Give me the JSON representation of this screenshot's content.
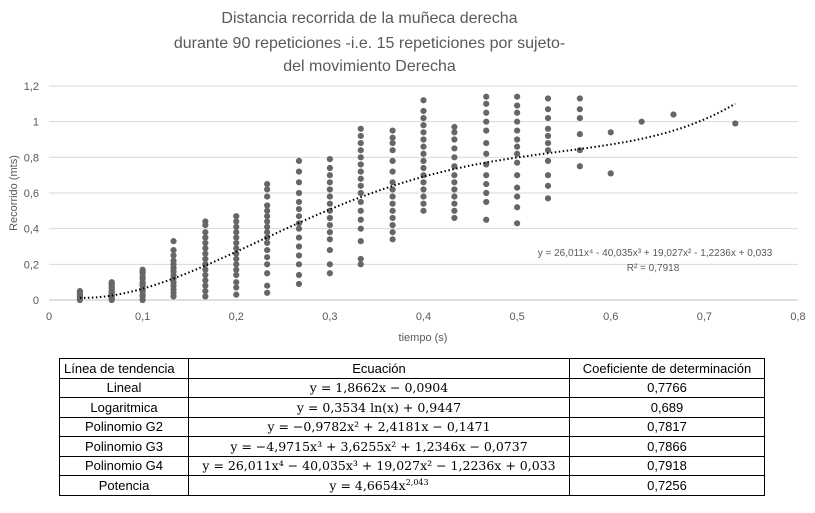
{
  "chart_data": {
    "type": "scatter",
    "title_lines": [
      "Distancia recorrida de la muñeca derecha",
      "durante  90 repeticiones -i.e. 15 repeticiones por sujeto-",
      "del movimiento Derecha"
    ],
    "xlabel": "tiempo (s)",
    "ylabel": "Recorrido (mts)",
    "xlim": [
      0,
      0.8
    ],
    "ylim": [
      0,
      1.2
    ],
    "xticks": [
      0,
      0.1,
      0.2,
      0.3,
      0.4,
      0.5,
      0.6,
      0.7,
      0.8
    ],
    "xtick_labels": [
      "0",
      "0,1",
      "0,2",
      "0,3",
      "0,4",
      "0,5",
      "0,6",
      "0,7",
      "0,8"
    ],
    "yticks": [
      0,
      0.2,
      0.4,
      0.6,
      0.8,
      1.0,
      1.2
    ],
    "ytick_labels": [
      "0",
      "0,2",
      "0,4",
      "0,6",
      "0,8",
      "1",
      "1,2"
    ],
    "grid": "horizontal",
    "point_color": "#666666",
    "trend_color": "#000000",
    "trendline": {
      "type": "polynomial",
      "coefficients": [
        0.033,
        -1.2236,
        19.027,
        -40.035,
        26.011
      ],
      "x_range": [
        0.033,
        0.733
      ],
      "equation_label": "y = 26,011x⁴ - 40,035x³ + 19,027x² - 1,2236x + 0,033",
      "r2_label": "R² = 0,7918"
    },
    "clusters": [
      {
        "x": 0.033,
        "y": [
          0.0,
          0.01,
          0.02,
          0.03,
          0.04,
          0.05
        ]
      },
      {
        "x": 0.067,
        "y": [
          0.0,
          0.01,
          0.02,
          0.03,
          0.04,
          0.05,
          0.06,
          0.07,
          0.08,
          0.09,
          0.1
        ]
      },
      {
        "x": 0.1,
        "y": [
          0.0,
          0.02,
          0.03,
          0.05,
          0.06,
          0.08,
          0.09,
          0.1,
          0.12,
          0.13,
          0.15,
          0.16,
          0.17
        ]
      },
      {
        "x": 0.133,
        "y": [
          0.02,
          0.04,
          0.06,
          0.08,
          0.1,
          0.12,
          0.14,
          0.16,
          0.18,
          0.2,
          0.22,
          0.25,
          0.28,
          0.33
        ]
      },
      {
        "x": 0.167,
        "y": [
          0.02,
          0.05,
          0.08,
          0.11,
          0.14,
          0.17,
          0.2,
          0.23,
          0.26,
          0.29,
          0.32,
          0.35,
          0.38,
          0.42,
          0.44
        ]
      },
      {
        "x": 0.2,
        "y": [
          0.03,
          0.07,
          0.1,
          0.14,
          0.17,
          0.2,
          0.23,
          0.26,
          0.29,
          0.32,
          0.35,
          0.38,
          0.41,
          0.44,
          0.47
        ]
      },
      {
        "x": 0.233,
        "y": [
          0.04,
          0.08,
          0.15,
          0.2,
          0.24,
          0.28,
          0.32,
          0.35,
          0.38,
          0.41,
          0.44,
          0.47,
          0.5,
          0.53,
          0.58,
          0.62,
          0.65
        ]
      },
      {
        "x": 0.267,
        "y": [
          0.09,
          0.14,
          0.2,
          0.25,
          0.3,
          0.35,
          0.4,
          0.43,
          0.47,
          0.51,
          0.55,
          0.6,
          0.66,
          0.72,
          0.78
        ]
      },
      {
        "x": 0.3,
        "y": [
          0.15,
          0.2,
          0.28,
          0.34,
          0.38,
          0.42,
          0.46,
          0.5,
          0.54,
          0.58,
          0.62,
          0.66,
          0.7,
          0.74,
          0.79
        ]
      },
      {
        "x": 0.333,
        "y": [
          0.2,
          0.23,
          0.33,
          0.4,
          0.45,
          0.5,
          0.55,
          0.6,
          0.64,
          0.68,
          0.72,
          0.76,
          0.8,
          0.84,
          0.88,
          0.92,
          0.96
        ]
      },
      {
        "x": 0.367,
        "y": [
          0.34,
          0.38,
          0.42,
          0.46,
          0.5,
          0.54,
          0.58,
          0.62,
          0.66,
          0.72,
          0.78,
          0.84,
          0.88,
          0.91,
          0.95
        ]
      },
      {
        "x": 0.4,
        "y": [
          0.5,
          0.54,
          0.58,
          0.62,
          0.66,
          0.7,
          0.74,
          0.78,
          0.82,
          0.86,
          0.9,
          0.94,
          0.98,
          1.02,
          1.06,
          1.12
        ]
      },
      {
        "x": 0.433,
        "y": [
          0.46,
          0.5,
          0.54,
          0.58,
          0.62,
          0.66,
          0.7,
          0.75,
          0.8,
          0.85,
          0.9,
          0.94,
          0.97
        ]
      },
      {
        "x": 0.467,
        "y": [
          0.45,
          0.55,
          0.6,
          0.65,
          0.7,
          0.76,
          0.82,
          0.88,
          0.95,
          1.0,
          1.05,
          1.1,
          1.14
        ]
      },
      {
        "x": 0.5,
        "y": [
          0.43,
          0.52,
          0.58,
          0.63,
          0.7,
          0.77,
          0.82,
          0.86,
          0.9,
          0.95,
          1.0,
          1.05,
          1.09,
          1.14
        ]
      },
      {
        "x": 0.533,
        "y": [
          0.57,
          0.64,
          0.7,
          0.78,
          0.84,
          0.88,
          0.92,
          0.96,
          1.02,
          1.07,
          1.13
        ]
      },
      {
        "x": 0.567,
        "y": [
          0.75,
          0.84,
          0.93,
          1.02,
          1.07,
          1.13
        ]
      },
      {
        "x": 0.6,
        "y": [
          0.71,
          0.94
        ]
      },
      {
        "x": 0.633,
        "y": [
          1.0
        ]
      },
      {
        "x": 0.667,
        "y": [
          1.04
        ]
      },
      {
        "x": 0.733,
        "y": [
          0.99
        ]
      }
    ]
  },
  "table": {
    "headers": [
      "Línea de tendencia",
      "Ecuación",
      "Coeficiente de determinación"
    ],
    "rows": [
      {
        "name": "Lineal",
        "equation": "y = 1,8662x − 0,0904",
        "r2": "0,7766"
      },
      {
        "name": "Logaritmica",
        "equation": "y = 0,3534 ln(x) + 0,9447",
        "r2": "0,689"
      },
      {
        "name": "Polinomio G2",
        "equation": "y = −0,9782x² + 2,4181x − 0,1471",
        "r2": "0,7817"
      },
      {
        "name": "Polinomio G3",
        "equation": "y = −4,9715x³ + 3,6255x² + 1,2346x − 0,0737",
        "r2": "0,7866"
      },
      {
        "name": "Polinomio G4",
        "equation": "y = 26,011x⁴ − 40,035x³ + 19,027x² − 1,2236x + 0,033",
        "r2": "0,7918"
      },
      {
        "name": "Potencia",
        "equation": "y = 4,6654x^2,043",
        "r2": "0,7256"
      }
    ]
  }
}
